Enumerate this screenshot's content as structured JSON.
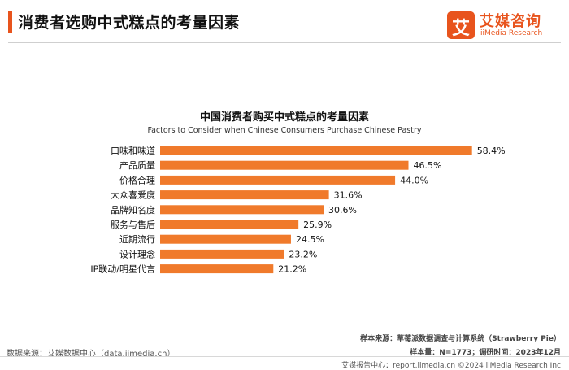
{
  "header": {
    "title": "消费者选购中式糕点的考量因素",
    "logo_cn": "艾媒咨询",
    "logo_en": "iiMedia Research",
    "logo_mark": "艾"
  },
  "colors": {
    "accent": "#e8541d",
    "bar": "#f07a2b"
  },
  "chart_data": {
    "type": "bar",
    "orientation": "horizontal",
    "title": "中国消费者购买中式糕点的考量因素",
    "subtitle": "Factors to Consider when Chinese Consumers Purchase Chinese Pastry",
    "categories": [
      "口味和味道",
      "产品质量",
      "价格合理",
      "大众喜爱度",
      "品牌知名度",
      "服务与售后",
      "近期流行",
      "设计理念",
      "IP联动/明星代言"
    ],
    "values": [
      58.4,
      46.5,
      44.0,
      31.6,
      30.6,
      25.9,
      24.5,
      23.2,
      21.2
    ],
    "value_labels": [
      "58.4%",
      "46.5%",
      "44.0%",
      "31.6%",
      "30.6%",
      "25.9%",
      "24.5%",
      "23.2%",
      "21.2%"
    ],
    "xlim": [
      0,
      60
    ],
    "grid": false
  },
  "footer": {
    "source": "数据来源：艾媒数据中心（data.iimedia.cn）",
    "sample_source": "样本来源：草莓派数据调查与计算系统（Strawberry Pie）",
    "sample_info": "样本量：N=1773；调研时间：2023年12月",
    "report_center": "艾媒报告中心：report.iimedia.cn  ©2024  iiMedia Research  Inc"
  }
}
